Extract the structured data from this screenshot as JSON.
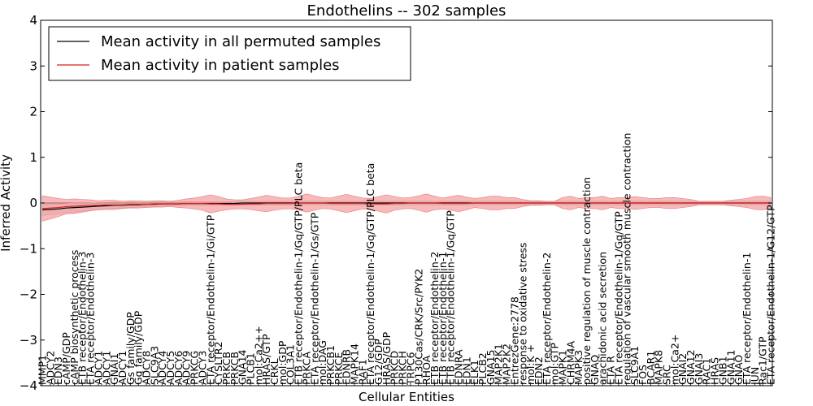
{
  "chart_data": {
    "type": "line",
    "title": "Endothelins -- 302 samples",
    "xlabel": "Cellular Entities",
    "ylabel": "Inferred Activity",
    "ylim": [
      -4,
      4
    ],
    "yticks": [
      -4,
      -3,
      -2,
      -1,
      0,
      1,
      2,
      3,
      4
    ],
    "ytick_labels": [
      "−4",
      "−3",
      "−2",
      "−1",
      "0",
      "1",
      "2",
      "3",
      "4"
    ],
    "legend_position": "top-left",
    "categories": [
      "MMP1",
      "ADCY2",
      "EDN3",
      "cAMP/GDP",
      "cAMP biosynthetic process",
      "ETB receptor/Endothelin-3",
      "ETA receptor/Endothelin-3",
      "ADCY1",
      "ADCY1",
      "GNAI1",
      "ADCY1",
      "Gs family/GDP",
      "Gq family/GDP",
      "ADCY8",
      "SLC9A3",
      "ADCY4",
      "ADCY5",
      "ADCY6",
      "ADCY9",
      "PRKCG",
      "ADCY3",
      "ETA receptor/Endothelin-1/Gi/GTP",
      "CYSLTR2",
      "PRKCB",
      "PRKCB",
      "GNA14",
      "PLCB1",
      "mol:Ca2++",
      "HRAS/GTP",
      "CRKL",
      "mol:GDP",
      "COL3A1",
      "ETB receptor/Endothelin-1/Gq/GTP/PLC beta",
      "PRKCA",
      "ETA receptor/Endothelin-1/Gs/GTP",
      "mol:DAG",
      "PRKCB1",
      "PRKCE",
      "EDNRB",
      "MAPK14",
      "RAF1",
      "ETA receptor/Endothelin-1/Gq/GTP/PLC beta",
      "G12/GDP",
      "HRAS/GDP",
      "PRKCD",
      "PRKCH",
      "TRPC6",
      "P130Cas/CRK/Src/PYK2",
      "RHOA",
      "ETB receptor/Endothelin-2",
      "ETB receptor/Endothelin-1",
      "ETB receptor/Endothelin-1/Gq/GTP",
      "EDNRA",
      "EDN1",
      "ELK1",
      "PLCB2",
      "GNA15",
      "MAP2K1",
      "MAP2K2",
      "EntrezGene:2778",
      "response to oxidative stress",
      "mol:K +",
      "EDN2",
      "ETA receptor/Endothelin-2",
      "mol:GTP",
      "MAPK1",
      "CHRM4A",
      "MAPK3",
      "positive regulation of muscle contraction",
      "GNAQ",
      "arachidonic acid secretion",
      "ETA R",
      "ETA receptor/Endothelin-1/Gq/GTP",
      "regulation of vascular smooth muscle contraction",
      "SLC9A1",
      "FOS",
      "BCAR1",
      "MAPK8",
      "SRC",
      "mol:Ca2+",
      "GNAI2",
      "GNA12",
      "GNAI3",
      "RAC1",
      "HRAS",
      "GNB1",
      "GNA11",
      "GNAO",
      "ETA receptor/Endothelin-1",
      "JUN",
      "Rac1/GTP",
      "ETA receptor/Endothelin-1/G12/GTP"
    ],
    "series": [
      {
        "name": "Mean activity in all permuted samples",
        "color": "#000000",
        "values": [
          -0.15,
          -0.14,
          -0.13,
          -0.11,
          -0.1,
          -0.09,
          -0.08,
          -0.07,
          -0.06,
          -0.05,
          -0.05,
          -0.04,
          -0.04,
          -0.03,
          -0.03,
          -0.02,
          -0.02,
          -0.02,
          -0.01,
          -0.01,
          -0.01,
          -0.01,
          -0.01,
          -0.01,
          -0.01,
          0,
          0,
          0,
          0,
          0,
          0,
          0,
          0,
          0,
          0,
          0,
          0,
          0,
          0,
          0,
          0,
          0,
          0,
          0,
          0,
          0,
          0,
          0,
          0,
          0,
          0,
          0,
          0,
          0,
          0,
          0,
          0,
          0,
          0,
          0,
          0,
          0,
          0,
          0,
          0,
          0,
          0,
          0,
          0,
          0,
          0,
          0,
          0,
          0,
          0,
          0,
          0,
          0,
          0,
          0,
          0,
          0,
          0,
          0,
          0,
          0,
          0,
          0,
          0,
          0,
          0,
          0
        ],
        "band": [
          0.12,
          0.12,
          0.11,
          0.1,
          0.1,
          0.09,
          0.08,
          0.08,
          0.07,
          0.07,
          0.06,
          0.06,
          0.05,
          0.05,
          0.05,
          0.05,
          0.04,
          0.04,
          0.04,
          0.04,
          0.04,
          0.04,
          0.04,
          0.04,
          0.04,
          0.04,
          0.04,
          0.04,
          0.04,
          0.04,
          0.04,
          0.04,
          0.04,
          0.04,
          0.04,
          0.04,
          0.04,
          0.04,
          0.04,
          0.04,
          0.04,
          0.04,
          0.04,
          0.04,
          0.04,
          0.04,
          0.04,
          0.04,
          0.04,
          0.04,
          0.04,
          0.04,
          0.04,
          0.04,
          0.04,
          0.04,
          0.04,
          0.04,
          0.04,
          0.04,
          0.04,
          0.04,
          0.04,
          0.04,
          0.04,
          0.04,
          0.04,
          0.04,
          0.04,
          0.04,
          0.04,
          0.04,
          0.04,
          0.04,
          0.04,
          0.04,
          0.04,
          0.04,
          0.04,
          0.04,
          0.04,
          0.04,
          0.04,
          0.04,
          0.04,
          0.04,
          0.04,
          0.04,
          0.04,
          0.04,
          0.04,
          0.04
        ]
      },
      {
        "name": "Mean activity in patient samples",
        "color": "#dd2222",
        "values": [
          -0.12,
          -0.11,
          -0.1,
          -0.08,
          -0.07,
          -0.06,
          -0.05,
          -0.05,
          -0.04,
          -0.04,
          -0.04,
          -0.03,
          -0.03,
          -0.03,
          -0.02,
          -0.02,
          -0.02,
          -0.02,
          -0.01,
          -0.01,
          -0.01,
          -0.02,
          -0.02,
          -0.03,
          -0.03,
          -0.03,
          -0.02,
          -0.02,
          -0.01,
          -0.01,
          -0.01,
          -0.01,
          0,
          0,
          0,
          0,
          -0.01,
          -0.01,
          -0.01,
          -0.01,
          -0.01,
          -0.02,
          -0.02,
          -0.02,
          -0.01,
          -0.01,
          0,
          0,
          0,
          0,
          -0.01,
          -0.01,
          -0.01,
          -0.01,
          0,
          0,
          0,
          0,
          0,
          0,
          0,
          0,
          0,
          0,
          0,
          0,
          0,
          0,
          0,
          0,
          0,
          0,
          0,
          0,
          0,
          0,
          0,
          0,
          0,
          0,
          0,
          0,
          0,
          0,
          0,
          0,
          0,
          0,
          0,
          0,
          0,
          0
        ],
        "band": [
          0.28,
          0.24,
          0.2,
          0.16,
          0.16,
          0.14,
          0.12,
          0.1,
          0.1,
          0.1,
          0.08,
          0.08,
          0.08,
          0.07,
          0.07,
          0.07,
          0.06,
          0.08,
          0.1,
          0.12,
          0.15,
          0.2,
          0.16,
          0.12,
          0.1,
          0.1,
          0.12,
          0.15,
          0.18,
          0.15,
          0.12,
          0.12,
          0.15,
          0.2,
          0.16,
          0.12,
          0.12,
          0.16,
          0.2,
          0.16,
          0.12,
          0.12,
          0.16,
          0.2,
          0.15,
          0.12,
          0.12,
          0.16,
          0.2,
          0.15,
          0.12,
          0.15,
          0.18,
          0.14,
          0.1,
          0.12,
          0.15,
          0.15,
          0.12,
          0.12,
          0.08,
          0.05,
          0.05,
          0.04,
          0.04,
          0.12,
          0.15,
          0.1,
          0.12,
          0.12,
          0.15,
          0.1,
          0.12,
          0.12,
          0.14,
          0.12,
          0.1,
          0.1,
          0.12,
          0.12,
          0.1,
          0.08,
          0.04,
          0.04,
          0.04,
          0.04,
          0.06,
          0.08,
          0.1,
          0.14,
          0.15,
          0.12
        ]
      }
    ]
  }
}
